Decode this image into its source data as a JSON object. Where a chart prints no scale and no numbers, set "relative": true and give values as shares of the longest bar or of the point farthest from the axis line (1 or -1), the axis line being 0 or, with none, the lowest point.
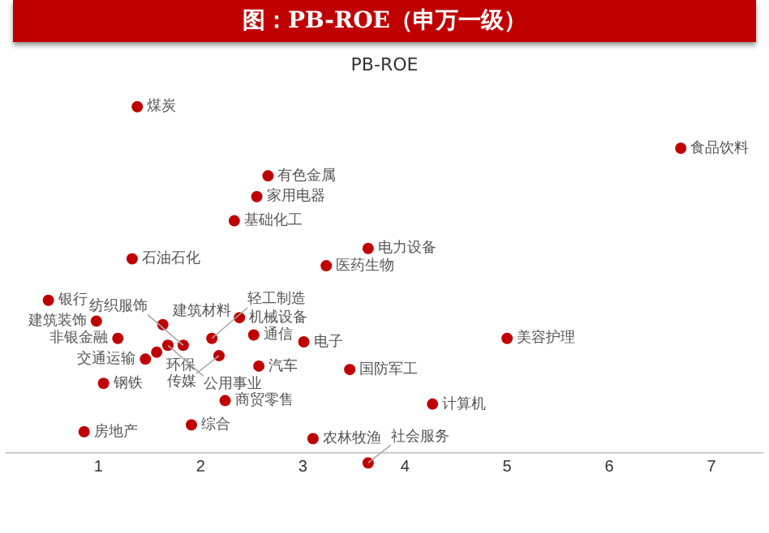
{
  "chart_data": {
    "type": "scatter",
    "title": "图：PB-ROE（申万一级）",
    "subtitle": "PB-ROE",
    "relative": true,
    "xlim": [
      0.1,
      7.5
    ],
    "xticks": [
      1,
      2,
      3,
      4,
      5,
      6,
      7
    ],
    "tick_labels": "x",
    "grid": false,
    "marker": "circle",
    "color": "#c00000",
    "x": [
      1.38,
      2.66,
      2.55,
      2.33,
      1.33,
      3.64,
      3.23,
      6.7,
      1.63,
      0.51,
      0.98,
      1.46,
      1.19,
      1.05,
      1.57,
      1.68,
      1.83,
      2.11,
      2.52,
      2.38,
      2.18,
      2.57,
      3.01,
      3.46,
      2.24,
      1.91,
      0.86,
      4.27,
      3.1,
      3.64,
      5.0
    ],
    "values": [
      1,
      0.8,
      0.74,
      0.67,
      0.56,
      0.59,
      0.54,
      0.88,
      0.37,
      0.44,
      0.38,
      0.27,
      0.33,
      0.2,
      0.29,
      0.31,
      0.31,
      0.33,
      0.34,
      0.39,
      0.28,
      0.25,
      0.32,
      0.24,
      0.15,
      0.08,
      0.06,
      0.14,
      0.04,
      -0.03,
      0.33
    ],
    "annotations": [
      {
        "text": "煤炭",
        "x": 1.38,
        "y": 1
      },
      {
        "text": "有色金属",
        "x": 2.66,
        "y": 0.8
      },
      {
        "text": "家用电器",
        "x": 2.55,
        "y": 0.74
      },
      {
        "text": "基础化工",
        "x": 2.33,
        "y": 0.67
      },
      {
        "text": "石油石化",
        "x": 1.33,
        "y": 0.56
      },
      {
        "text": "电力设备",
        "x": 3.64,
        "y": 0.59
      },
      {
        "text": "医药生物",
        "x": 3.23,
        "y": 0.54
      },
      {
        "text": "食品饮料",
        "x": 6.7,
        "y": 0.88
      },
      {
        "text": "建筑材料",
        "x": 1.63,
        "y": 0.37
      },
      {
        "text": "银行",
        "x": 0.51,
        "y": 0.44
      },
      {
        "text": "建筑装饰",
        "x": 0.98,
        "y": 0.38
      },
      {
        "text": "交通运输",
        "x": 1.46,
        "y": 0.27
      },
      {
        "text": "非银金融",
        "x": 1.19,
        "y": 0.33
      },
      {
        "text": "钢铁",
        "x": 1.05,
        "y": 0.2
      },
      {
        "text": "环保",
        "x": 1.57,
        "y": 0.29
      },
      {
        "text": "公用事业",
        "x": 1.68,
        "y": 0.31
      },
      {
        "text": "纺织服饰",
        "x": 1.83,
        "y": 0.31
      },
      {
        "text": "轻工制造",
        "x": 2.11,
        "y": 0.33
      },
      {
        "text": "通信",
        "x": 2.52,
        "y": 0.34
      },
      {
        "text": "机械设备",
        "x": 2.38,
        "y": 0.39
      },
      {
        "text": "传媒",
        "x": 2.18,
        "y": 0.28
      },
      {
        "text": "汽车",
        "x": 2.57,
        "y": 0.25
      },
      {
        "text": "电子",
        "x": 3.01,
        "y": 0.32
      },
      {
        "text": "国防军工",
        "x": 3.46,
        "y": 0.24
      },
      {
        "text": "商贸零售",
        "x": 2.24,
        "y": 0.15
      },
      {
        "text": "综合",
        "x": 1.91,
        "y": 0.08
      },
      {
        "text": "房地产",
        "x": 0.86,
        "y": 0.06
      },
      {
        "text": "计算机",
        "x": 4.27,
        "y": 0.14
      },
      {
        "text": "农林牧渔",
        "x": 3.1,
        "y": 0.04
      },
      {
        "text": "社会服务",
        "x": 3.64,
        "y": -0.03
      },
      {
        "text": "美容护理",
        "x": 5.0,
        "y": 0.33
      }
    ]
  }
}
